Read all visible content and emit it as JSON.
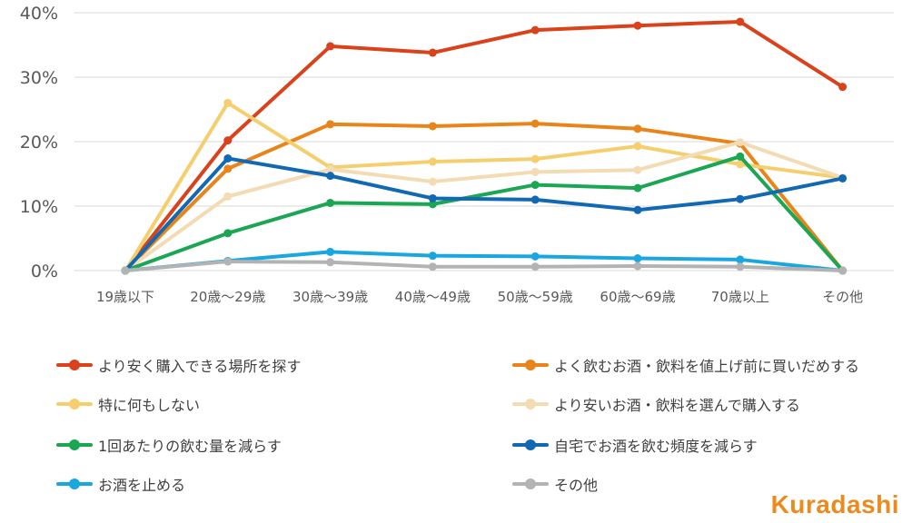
{
  "chart_data": {
    "type": "line",
    "title": "",
    "xlabel": "",
    "ylabel": "",
    "ylim": [
      0,
      40
    ],
    "yticks": [
      0,
      10,
      20,
      30,
      40
    ],
    "ytick_labels": [
      "0%",
      "10%",
      "20%",
      "30%",
      "40%"
    ],
    "grid": true,
    "categories": [
      "19歳以下",
      "20歳～29歳",
      "30歳～39歳",
      "40歳～49歳",
      "50歳～59歳",
      "60歳～69歳",
      "70歳以上",
      "その他"
    ],
    "series": [
      {
        "name": "より安く購入できる場所を探す",
        "color": "#d9421a",
        "values": [
          0,
          20.2,
          34.8,
          33.8,
          37.3,
          38.0,
          38.6,
          28.5
        ]
      },
      {
        "name": "よく飲むお酒・飲料を値上げ前に買いだめする",
        "color": "#e8841a",
        "values": [
          0,
          15.8,
          22.7,
          22.4,
          22.8,
          22.0,
          19.7,
          0
        ]
      },
      {
        "name": "特に何もしない",
        "color": "#f5cf6e",
        "values": [
          0,
          26.0,
          16.0,
          16.9,
          17.3,
          19.3,
          16.5,
          14.4
        ]
      },
      {
        "name": "より安いお酒・飲料を選んで購入する",
        "color": "#f3dbb3",
        "values": [
          0,
          11.5,
          15.7,
          13.8,
          15.3,
          15.6,
          19.9,
          14.4
        ]
      },
      {
        "name": "1回あたりの飲む量を減らす",
        "color": "#1aa653",
        "values": [
          0,
          5.8,
          10.5,
          10.3,
          13.3,
          12.8,
          17.7,
          0
        ]
      },
      {
        "name": "自宅でお酒を飲む頻度を減らす",
        "color": "#1168b3",
        "values": [
          0,
          17.4,
          14.7,
          11.2,
          11.0,
          9.4,
          11.1,
          14.3
        ]
      },
      {
        "name": "お酒を止める",
        "color": "#1aa7e0",
        "values": [
          0,
          1.5,
          2.9,
          2.3,
          2.2,
          1.9,
          1.7,
          0
        ]
      },
      {
        "name": "その他",
        "color": "#b3b3b3",
        "values": [
          0,
          1.4,
          1.3,
          0.6,
          0.6,
          0.7,
          0.6,
          0
        ]
      }
    ]
  },
  "brand": {
    "name": "Kuradashi",
    "k": "K",
    "rest": "uradashi"
  }
}
